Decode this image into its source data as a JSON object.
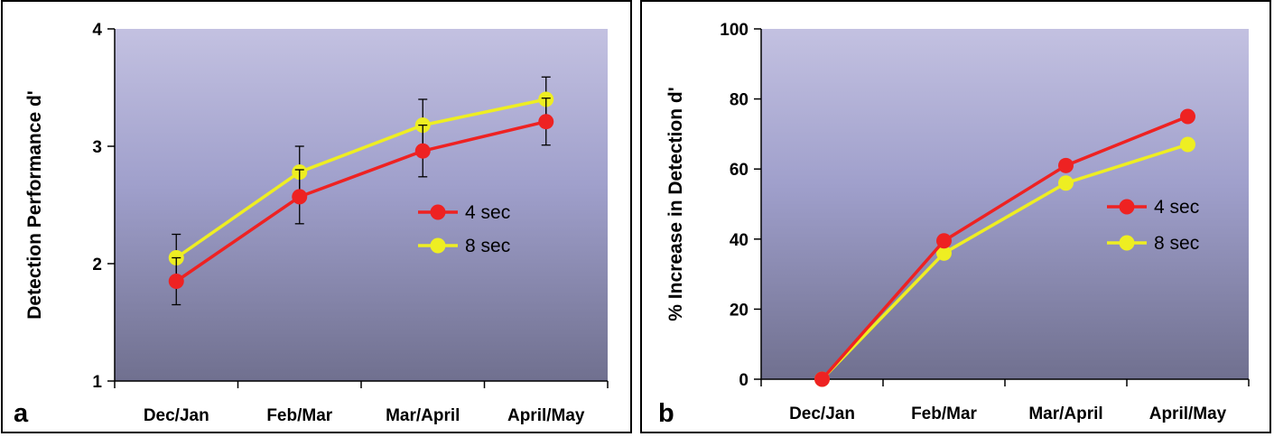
{
  "chart_data": [
    {
      "type": "line",
      "panel_label": "a",
      "title": "",
      "xlabel": "",
      "ylabel": "Detection Performance d'",
      "categories": [
        "Dec/Jan",
        "Feb/Mar",
        "Mar/April",
        "April/May"
      ],
      "ylim": [
        1,
        4
      ],
      "yticks": [
        1,
        2,
        3,
        4
      ],
      "grid": false,
      "legend_position": "center-right",
      "background": "gradient lavender to slate",
      "series": [
        {
          "name": "4 sec",
          "color": "#ee2222",
          "values": [
            1.85,
            2.57,
            2.96,
            3.21
          ],
          "error": [
            0.2,
            0.23,
            0.22,
            0.2
          ]
        },
        {
          "name": "8 sec",
          "color": "#eeee22",
          "values": [
            2.05,
            2.78,
            3.18,
            3.4
          ],
          "error": [
            0.2,
            0.22,
            0.22,
            0.19
          ]
        }
      ]
    },
    {
      "type": "line",
      "panel_label": "b",
      "title": "",
      "xlabel": "",
      "ylabel": "% Increase in Detection d'",
      "categories": [
        "Dec/Jan",
        "Feb/Mar",
        "Mar/April",
        "April/May"
      ],
      "ylim": [
        0,
        100
      ],
      "yticks": [
        0,
        20,
        40,
        60,
        80,
        100
      ],
      "grid": false,
      "legend_position": "center-right",
      "background": "gradient lavender to slate",
      "series": [
        {
          "name": "4 sec",
          "color": "#ee2222",
          "values": [
            0,
            39.5,
            61,
            75
          ]
        },
        {
          "name": "8 sec",
          "color": "#eeee22",
          "values": [
            0,
            36,
            56,
            67
          ]
        }
      ]
    }
  ]
}
